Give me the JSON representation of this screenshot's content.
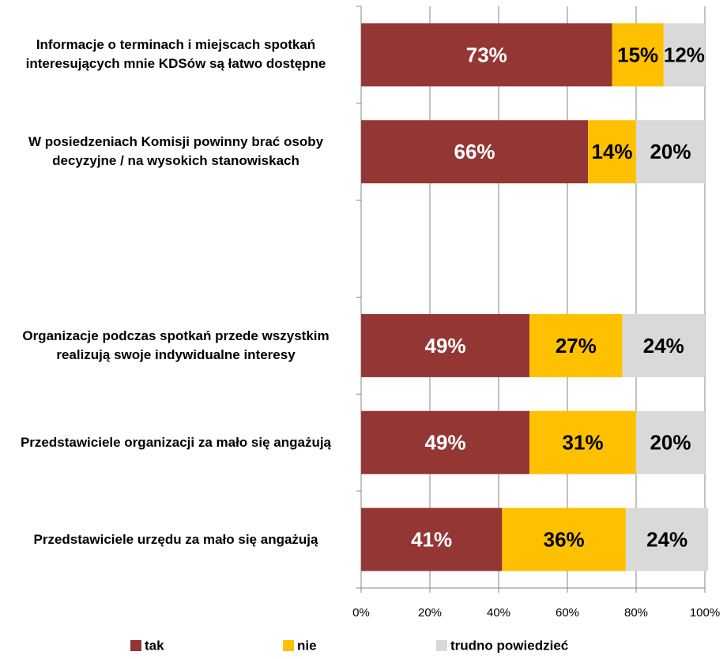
{
  "chart_data": {
    "type": "stacked-bar-horizontal",
    "categories": [
      "Informacje o terminach i miejscach spotkań interesujących mnie KDSów są łatwo dostępne",
      "W posiedzeniach Komisji powinny brać osoby  decyzyjne / na wysokich stanowiskach",
      null,
      "Organizacje podczas spotkań przede wszystkim realizują swoje indywidualne interesy",
      "Przedstawiciele organizacji za mało się angażują",
      "Przedstawiciele urzędu za mało się angażują"
    ],
    "series": [
      {
        "name": "tak",
        "color": "#943634",
        "values": [
          73,
          66,
          null,
          49,
          49,
          41
        ],
        "value_labels": [
          "73%",
          "66%",
          null,
          "49%",
          "49%",
          "41%"
        ]
      },
      {
        "name": "nie",
        "color": "#FFC000",
        "values": [
          15,
          14,
          null,
          27,
          31,
          36
        ],
        "value_labels": [
          "15%",
          "14%",
          null,
          "27%",
          "31%",
          "36%"
        ]
      },
      {
        "name": "trudno powiedzieć",
        "color": "#D9D9D9",
        "values": [
          12,
          20,
          null,
          24,
          20,
          24
        ],
        "value_labels": [
          "12%",
          "20%",
          null,
          "24%",
          "20%",
          "24%"
        ]
      }
    ],
    "xlim": [
      0,
      100
    ],
    "xticks": [
      {
        "value": 0,
        "label": "0%"
      },
      {
        "value": 20,
        "label": "20%"
      },
      {
        "value": 40,
        "label": "40%"
      },
      {
        "value": 60,
        "label": "60%"
      },
      {
        "value": 80,
        "label": "80%"
      },
      {
        "value": 100,
        "label": "100%"
      }
    ],
    "grid": true,
    "legend": "bottom"
  }
}
